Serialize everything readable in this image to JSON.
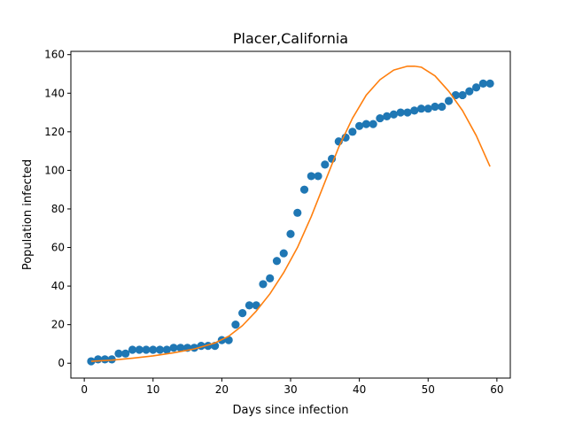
{
  "chart_data": {
    "type": "scatter",
    "title": "Placer,California",
    "xlabel": "Days since infection",
    "ylabel": "Population infected",
    "xlim": [
      -1.95,
      61.95
    ],
    "ylim": [
      -7.7,
      161.7
    ],
    "xticks": [
      0,
      10,
      20,
      30,
      40,
      50,
      60
    ],
    "yticks": [
      0,
      20,
      40,
      60,
      80,
      100,
      120,
      140,
      160
    ],
    "grid": false,
    "legend": "none",
    "series": [
      {
        "kind": "scatter",
        "color": "#1f77b4",
        "x": [
          1,
          2,
          3,
          4,
          5,
          6,
          7,
          8,
          9,
          10,
          11,
          12,
          13,
          14,
          15,
          16,
          17,
          18,
          19,
          20,
          21,
          22,
          23,
          24,
          25,
          26,
          27,
          28,
          29,
          30,
          31,
          32,
          33,
          34,
          35,
          36,
          37,
          38,
          39,
          40,
          41,
          42,
          43,
          44,
          45,
          46,
          47,
          48,
          49,
          50,
          51,
          52,
          53,
          54,
          55,
          56,
          57,
          58,
          59
        ],
        "y": [
          1,
          2,
          2,
          2,
          5,
          5,
          7,
          7,
          7,
          7,
          7,
          7,
          8,
          8,
          8,
          8,
          9,
          9,
          9,
          12,
          12,
          20,
          26,
          30,
          30,
          41,
          44,
          53,
          57,
          67,
          78,
          90,
          97,
          97,
          103,
          106,
          115,
          117,
          120,
          123,
          124,
          124,
          127,
          128,
          129,
          130,
          130,
          131,
          132,
          132,
          133,
          133,
          136,
          139,
          139,
          141,
          143,
          145,
          145
        ]
      },
      {
        "kind": "line",
        "color": "#ff7f0e",
        "x": [
          1,
          4,
          7,
          10,
          13,
          16,
          19,
          21,
          23,
          25,
          27,
          29,
          31,
          33,
          35,
          37,
          39,
          41,
          43,
          45,
          47,
          48,
          49,
          51,
          53,
          55,
          57,
          59
        ],
        "y": [
          1,
          1.6,
          2.6,
          3.8,
          5.4,
          7.4,
          10.5,
          14,
          19.5,
          27,
          36,
          47,
          60,
          76,
          94,
          112,
          127,
          139,
          147,
          152,
          154,
          154,
          153.5,
          149,
          141,
          131,
          118,
          102
        ]
      }
    ]
  }
}
